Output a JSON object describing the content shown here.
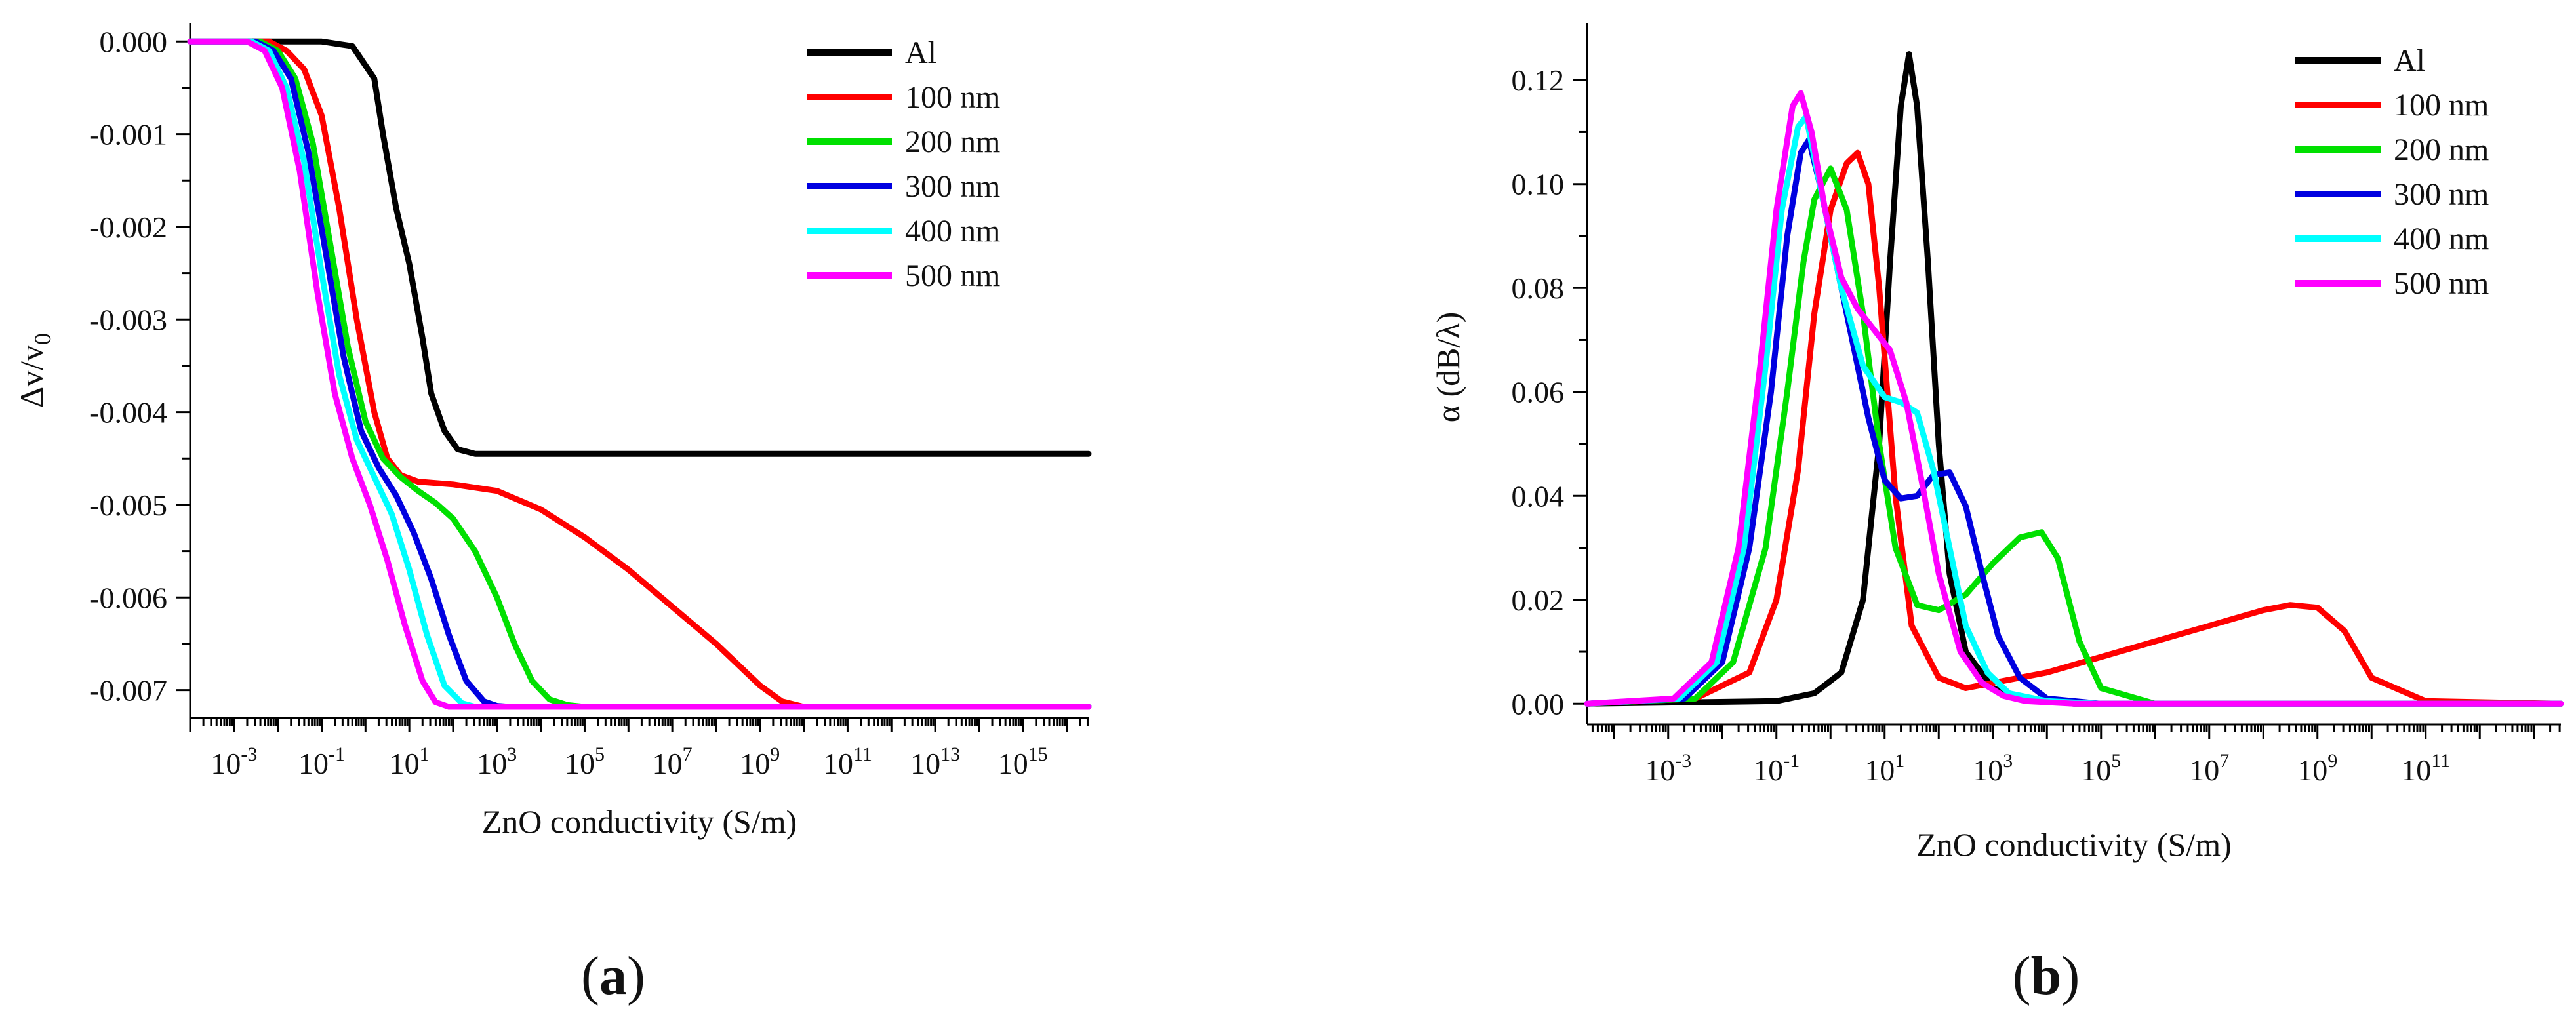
{
  "panels": [
    {
      "open": "(",
      "letter": "a",
      "close": ")"
    },
    {
      "open": "(",
      "letter": "b",
      "close": ")"
    }
  ],
  "chart_data": [
    {
      "id": "a",
      "type": "line",
      "xscale": "log",
      "xlabel": "ZnO conductivity (S/m)",
      "ylabel": "Δv/v0",
      "xlim": [
        -4,
        16.5
      ],
      "ylim": [
        -0.0073,
        0.0002
      ],
      "xticks": [
        -3,
        -1,
        1,
        3,
        5,
        7,
        9,
        11,
        13,
        15
      ],
      "xtick_labels": [
        "10-3",
        "10-1",
        "101",
        "103",
        "105",
        "107",
        "109",
        "1011",
        "1013",
        "1015"
      ],
      "yticks": [
        0,
        -0.001,
        -0.002,
        -0.003,
        -0.004,
        -0.005,
        -0.006,
        -0.007
      ],
      "ytick_labels": [
        "0.000",
        "-0.001",
        "-0.002",
        "-0.003",
        "-0.004",
        "-0.005",
        "-0.006",
        "-0.007"
      ],
      "legend_position": "top-right",
      "series": [
        {
          "name": "Al",
          "color": "#000000",
          "x": [
            -4,
            -1.0,
            -0.3,
            0.2,
            0.4,
            0.7,
            1.0,
            1.3,
            1.5,
            1.8,
            2.1,
            2.5,
            3.0,
            16.5
          ],
          "y": [
            0,
            0,
            -5e-05,
            -0.0004,
            -0.001,
            -0.0018,
            -0.0024,
            -0.0032,
            -0.0038,
            -0.0042,
            -0.0044,
            -0.00445,
            -0.00445,
            -0.00445
          ]
        },
        {
          "name": "100 nm",
          "color": "#ff0000",
          "x": [
            -4,
            -2.2,
            -1.8,
            -1.4,
            -1.0,
            -0.6,
            -0.2,
            0.2,
            0.5,
            0.8,
            1.2,
            2,
            3,
            4,
            5,
            6,
            7,
            8,
            9,
            9.5,
            10,
            10.5,
            11,
            16.5
          ],
          "y": [
            0,
            0,
            -0.0001,
            -0.0003,
            -0.0008,
            -0.0018,
            -0.003,
            -0.004,
            -0.0045,
            -0.00468,
            -0.00475,
            -0.00478,
            -0.00485,
            -0.00505,
            -0.00535,
            -0.0057,
            -0.0061,
            -0.0065,
            -0.00695,
            -0.00712,
            -0.00718,
            -0.00718,
            -0.00718,
            -0.00718
          ]
        },
        {
          "name": "200 nm",
          "color": "#00e000",
          "x": [
            -4,
            -2.4,
            -2.0,
            -1.6,
            -1.2,
            -0.8,
            -0.4,
            0,
            0.4,
            0.8,
            1.2,
            1.6,
            2,
            2.5,
            3,
            3.4,
            3.8,
            4.2,
            4.6,
            5.0,
            16.5
          ],
          "y": [
            0,
            0,
            -0.0001,
            -0.0004,
            -0.0011,
            -0.0022,
            -0.0033,
            -0.0041,
            -0.0045,
            -0.0047,
            -0.00485,
            -0.00498,
            -0.00515,
            -0.0055,
            -0.006,
            -0.0065,
            -0.0069,
            -0.0071,
            -0.00716,
            -0.00718,
            -0.00718
          ]
        },
        {
          "name": "300 nm",
          "color": "#0000e0",
          "x": [
            -4,
            -2.5,
            -2.1,
            -1.7,
            -1.3,
            -0.9,
            -0.5,
            -0.1,
            0.3,
            0.7,
            1.1,
            1.5,
            1.9,
            2.3,
            2.7,
            3.0,
            3.3,
            16.5
          ],
          "y": [
            0,
            0,
            -0.0001,
            -0.0004,
            -0.0012,
            -0.0023,
            -0.0034,
            -0.0042,
            -0.0046,
            -0.0049,
            -0.0053,
            -0.0058,
            -0.0064,
            -0.0069,
            -0.00712,
            -0.00717,
            -0.00718,
            -0.00718
          ]
        },
        {
          "name": "400 nm",
          "color": "#00ffff",
          "x": [
            -4,
            -2.6,
            -2.2,
            -1.8,
            -1.4,
            -1.0,
            -0.6,
            -0.2,
            0.2,
            0.6,
            1.0,
            1.4,
            1.8,
            2.2,
            2.5,
            2.8,
            16.5
          ],
          "y": [
            0,
            0,
            -0.0001,
            -0.0005,
            -0.0013,
            -0.0025,
            -0.0036,
            -0.0043,
            -0.0047,
            -0.0051,
            -0.0057,
            -0.0064,
            -0.00695,
            -0.00714,
            -0.00718,
            -0.00718,
            -0.00718
          ]
        },
        {
          "name": "500 nm",
          "color": "#ff00ff",
          "x": [
            -4,
            -2.7,
            -2.3,
            -1.9,
            -1.5,
            -1.1,
            -0.7,
            -0.3,
            0.1,
            0.5,
            0.9,
            1.3,
            1.6,
            1.9,
            2.2,
            16.5
          ],
          "y": [
            0,
            0,
            -0.0001,
            -0.0005,
            -0.0014,
            -0.0027,
            -0.0038,
            -0.0045,
            -0.005,
            -0.0056,
            -0.0063,
            -0.0069,
            -0.00713,
            -0.00718,
            -0.00718,
            -0.00718
          ]
        }
      ]
    },
    {
      "id": "b",
      "type": "line",
      "xscale": "log",
      "xlabel": "ZnO conductivity (S/m)",
      "ylabel": "α (dB/λ)",
      "xlim": [
        -4.5,
        13.5
      ],
      "ylim": [
        -0.004,
        0.131
      ],
      "xticks": [
        -3,
        -1,
        1,
        3,
        5,
        7,
        9,
        11
      ],
      "xtick_labels": [
        "10-3",
        "10-1",
        "101",
        "103",
        "105",
        "107",
        "109",
        "1011"
      ],
      "yticks": [
        0,
        0.02,
        0.04,
        0.06,
        0.08,
        0.1,
        0.12
      ],
      "ytick_labels": [
        "0.00",
        "0.02",
        "0.04",
        "0.06",
        "0.08",
        "0.10",
        "0.12"
      ],
      "legend_position": "top-right",
      "series": [
        {
          "name": "Al",
          "color": "#000000",
          "x": [
            -4.5,
            -1,
            -0.3,
            0.2,
            0.6,
            0.9,
            1.1,
            1.3,
            1.45,
            1.6,
            1.8,
            2.0,
            2.2,
            2.5,
            3.0,
            3.5,
            4.5,
            13.5
          ],
          "y": [
            0,
            0.0005,
            0.002,
            0.006,
            0.02,
            0.05,
            0.085,
            0.115,
            0.125,
            0.115,
            0.085,
            0.05,
            0.025,
            0.01,
            0.003,
            0.001,
            0,
            0
          ]
        },
        {
          "name": "100 nm",
          "color": "#ff0000",
          "x": [
            -4.5,
            -2.5,
            -1.5,
            -1.0,
            -0.6,
            -0.3,
            0,
            0.3,
            0.5,
            0.7,
            0.9,
            1.2,
            1.5,
            2.0,
            2.5,
            3,
            4,
            5,
            6,
            7,
            8,
            8.5,
            9.0,
            9.5,
            10,
            11,
            13.5
          ],
          "y": [
            0,
            0.001,
            0.006,
            0.02,
            0.045,
            0.075,
            0.095,
            0.104,
            0.106,
            0.1,
            0.08,
            0.04,
            0.015,
            0.005,
            0.003,
            0.004,
            0.006,
            0.009,
            0.012,
            0.015,
            0.018,
            0.019,
            0.0185,
            0.014,
            0.005,
            0.0005,
            0
          ]
        },
        {
          "name": "200 nm",
          "color": "#00e000",
          "x": [
            -4.5,
            -2.5,
            -1.8,
            -1.2,
            -0.8,
            -0.5,
            -0.3,
            0,
            0.3,
            0.6,
            0.9,
            1.2,
            1.6,
            2.0,
            2.5,
            3.0,
            3.5,
            3.9,
            4.2,
            4.6,
            5.0,
            6.0,
            13.5
          ],
          "y": [
            0,
            0.001,
            0.008,
            0.03,
            0.06,
            0.085,
            0.097,
            0.103,
            0.095,
            0.075,
            0.05,
            0.03,
            0.019,
            0.018,
            0.021,
            0.027,
            0.032,
            0.033,
            0.028,
            0.012,
            0.003,
            0,
            0
          ]
        },
        {
          "name": "300 nm",
          "color": "#0000e0",
          "x": [
            -4.5,
            -2.7,
            -2.0,
            -1.5,
            -1.1,
            -0.8,
            -0.55,
            -0.4,
            -0.2,
            0.1,
            0.4,
            0.7,
            1.0,
            1.3,
            1.6,
            1.9,
            2.2,
            2.5,
            2.8,
            3.1,
            3.5,
            4.0,
            5.0,
            13.5
          ],
          "y": [
            0,
            0.001,
            0.008,
            0.03,
            0.06,
            0.09,
            0.106,
            0.1085,
            0.1,
            0.085,
            0.07,
            0.055,
            0.043,
            0.0395,
            0.04,
            0.044,
            0.0445,
            0.038,
            0.025,
            0.013,
            0.005,
            0.001,
            0,
            0
          ]
        },
        {
          "name": "400 nm",
          "color": "#00ffff",
          "x": [
            -4.5,
            -2.8,
            -2.1,
            -1.6,
            -1.2,
            -0.9,
            -0.6,
            -0.45,
            -0.2,
            0.2,
            0.6,
            1.0,
            1.3,
            1.6,
            1.9,
            2.2,
            2.5,
            2.9,
            3.3,
            4.0,
            5.0,
            13.5
          ],
          "y": [
            0,
            0.001,
            0.008,
            0.03,
            0.065,
            0.095,
            0.111,
            0.113,
            0.1,
            0.08,
            0.065,
            0.059,
            0.058,
            0.056,
            0.045,
            0.03,
            0.015,
            0.006,
            0.002,
            0.0005,
            0,
            0
          ]
        },
        {
          "name": "500 nm",
          "color": "#ff00ff",
          "x": [
            -4.5,
            -2.9,
            -2.2,
            -1.7,
            -1.3,
            -1.0,
            -0.7,
            -0.55,
            -0.35,
            -0.1,
            0.2,
            0.5,
            0.8,
            1.1,
            1.4,
            1.7,
            2.0,
            2.4,
            2.8,
            3.2,
            3.6,
            4.5,
            13.5
          ],
          "y": [
            0,
            0.001,
            0.008,
            0.03,
            0.065,
            0.095,
            0.115,
            0.1175,
            0.11,
            0.095,
            0.082,
            0.076,
            0.072,
            0.068,
            0.058,
            0.042,
            0.025,
            0.01,
            0.004,
            0.0015,
            0.0005,
            0,
            0
          ]
        }
      ]
    }
  ]
}
